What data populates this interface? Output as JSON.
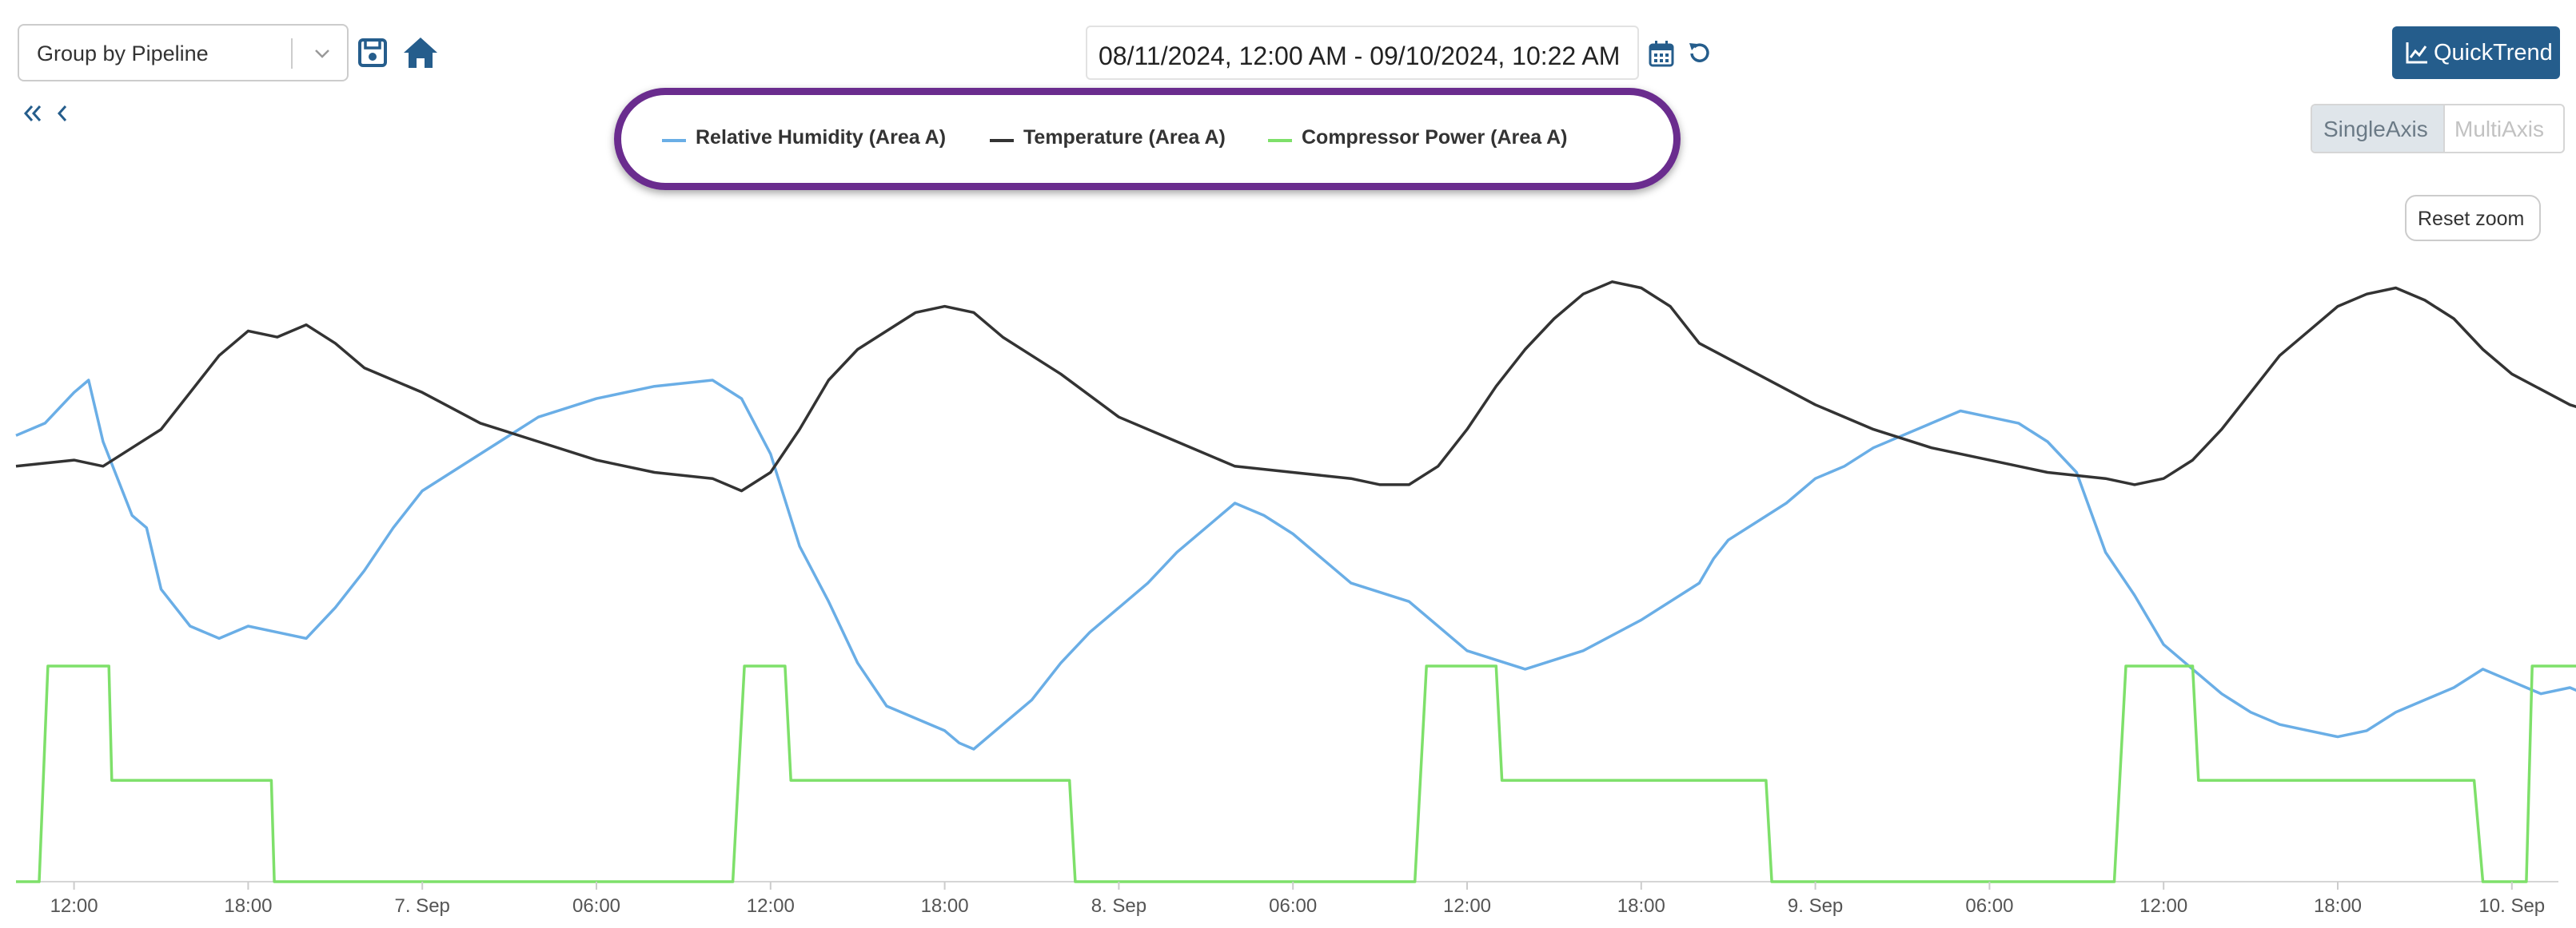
{
  "toolbar": {
    "group_select_value": "Group by Pipeline",
    "date_range": "08/11/2024, 12:00 AM - 09/10/2024, 10:22 AM",
    "quicktrend_label": "QuickTrend",
    "single_axis_label": "SingleAxis",
    "multi_axis_label": "MultiAxis",
    "reset_zoom_label": "Reset zoom",
    "icons": [
      "chevron-down-icon",
      "save-icon",
      "home-icon",
      "calendar-icon",
      "refresh-icon",
      "double-chevron-left-icon",
      "chevron-left-icon",
      "chart-icon"
    ]
  },
  "colors": {
    "accent": "#255d8c",
    "humidity": "#6aaee6",
    "temperature": "#333333",
    "compressor": "#7ee06a",
    "highlight": "#6a2c8e"
  },
  "chart_data": {
    "type": "line",
    "x_unit": "hours",
    "legend_position": "top-center",
    "grid": false,
    "tick_labels": [
      "12:00",
      "18:00",
      "7. Sep",
      "06:00",
      "12:00",
      "18:00",
      "8. Sep",
      "06:00",
      "12:00",
      "18:00",
      "9. Sep",
      "06:00",
      "12:00",
      "18:00",
      "10. Sep"
    ],
    "series": [
      {
        "name": "Relative Humidity (Area A)",
        "color": "#6aaee6",
        "x": [
          10,
          11,
          12,
          12.5,
          13,
          14,
          14.5,
          15,
          16,
          17,
          18,
          19,
          20,
          21,
          22,
          23,
          24,
          26,
          28,
          30,
          32,
          34,
          35,
          36,
          37,
          38,
          39,
          40,
          41,
          42,
          42.5,
          43,
          44,
          45,
          46,
          47,
          48,
          49,
          50,
          51,
          52,
          53,
          54,
          55,
          56,
          58,
          60,
          62,
          64,
          66,
          68,
          68.5,
          69,
          70,
          71,
          72,
          73,
          74,
          75,
          76,
          77,
          78,
          79,
          80,
          81,
          82,
          83,
          84,
          85,
          86,
          87,
          88,
          89,
          90,
          91,
          92,
          93,
          94,
          95,
          96,
          96.5,
          97,
          98,
          99,
          100,
          101,
          102,
          103,
          104,
          105,
          106,
          107,
          108,
          109,
          110,
          111,
          112,
          113,
          114,
          115,
          116,
          117,
          118
        ],
        "values": [
          71,
          73,
          78,
          80,
          70,
          58,
          56,
          46,
          40,
          38,
          40,
          39,
          38,
          43,
          49,
          56,
          62,
          68,
          74,
          77,
          79,
          80,
          77,
          68,
          53,
          44,
          34,
          27,
          25,
          23,
          21,
          20,
          24,
          28,
          34,
          39,
          43,
          47,
          52,
          56,
          60,
          58,
          55,
          51,
          47,
          44,
          36,
          33,
          36,
          41,
          47,
          51,
          54,
          57,
          60,
          64,
          66,
          69,
          71,
          73,
          75,
          74,
          73,
          70,
          65,
          52,
          45,
          37,
          33,
          29,
          26,
          24,
          23,
          22,
          23,
          26,
          28,
          30,
          33,
          31,
          30,
          29,
          30,
          28,
          29,
          32,
          36,
          41,
          46,
          53,
          58,
          63,
          67,
          70,
          70,
          67,
          62,
          54,
          45,
          37,
          32,
          29,
          26
        ]
      },
      {
        "name": "Temperature (Area A)",
        "color": "#333333",
        "x": [
          10,
          12,
          13,
          14,
          15,
          16,
          17,
          18,
          19,
          20,
          21,
          22,
          24,
          26,
          28,
          30,
          32,
          34,
          35,
          36,
          37,
          38,
          39,
          40,
          41,
          42,
          43,
          44,
          46,
          48,
          50,
          52,
          54,
          56,
          57,
          58,
          59,
          60,
          61,
          62,
          63,
          64,
          65,
          66,
          67,
          68,
          70,
          72,
          74,
          76,
          78,
          80,
          82,
          83,
          84,
          85,
          86,
          87,
          88,
          89,
          90,
          91,
          92,
          93,
          94,
          95,
          96,
          98,
          100,
          102,
          104,
          106,
          107,
          108,
          109,
          110,
          111,
          112,
          113,
          114,
          115,
          116,
          117,
          118
        ],
        "values": [
          66,
          67,
          66,
          69,
          72,
          78,
          84,
          88,
          87,
          89,
          86,
          82,
          78,
          73,
          70,
          67,
          65,
          64,
          62,
          65,
          72,
          80,
          85,
          88,
          91,
          92,
          91,
          87,
          81,
          74,
          70,
          66,
          65,
          64,
          63,
          63,
          66,
          72,
          79,
          85,
          90,
          94,
          96,
          95,
          92,
          86,
          81,
          76,
          72,
          69,
          67,
          65,
          64,
          63,
          64,
          67,
          72,
          78,
          84,
          88,
          92,
          94,
          95,
          93,
          90,
          85,
          81,
          76,
          73,
          70,
          68,
          67,
          68,
          73,
          79,
          85,
          88,
          91,
          92,
          94,
          95,
          93,
          89,
          84
        ]
      },
      {
        "name": "Compressor Power (Area A)",
        "color": "#7ee06a",
        "x": [
          10,
          10.8,
          11.1,
          13.2,
          13.3,
          18.8,
          18.9,
          34.7,
          35.1,
          36.5,
          36.7,
          46.3,
          46.5,
          58.2,
          58.6,
          61.0,
          61.2,
          70.3,
          70.5,
          82.3,
          82.7,
          85.0,
          85.2,
          94.7,
          95.0,
          96.5,
          96.7,
          118
        ],
        "values": [
          0,
          0,
          100,
          100,
          47,
          47,
          0,
          0,
          100,
          100,
          47,
          47,
          0,
          0,
          100,
          100,
          47,
          47,
          0,
          0,
          100,
          100,
          47,
          47,
          0,
          0,
          100,
          100
        ]
      }
    ]
  }
}
